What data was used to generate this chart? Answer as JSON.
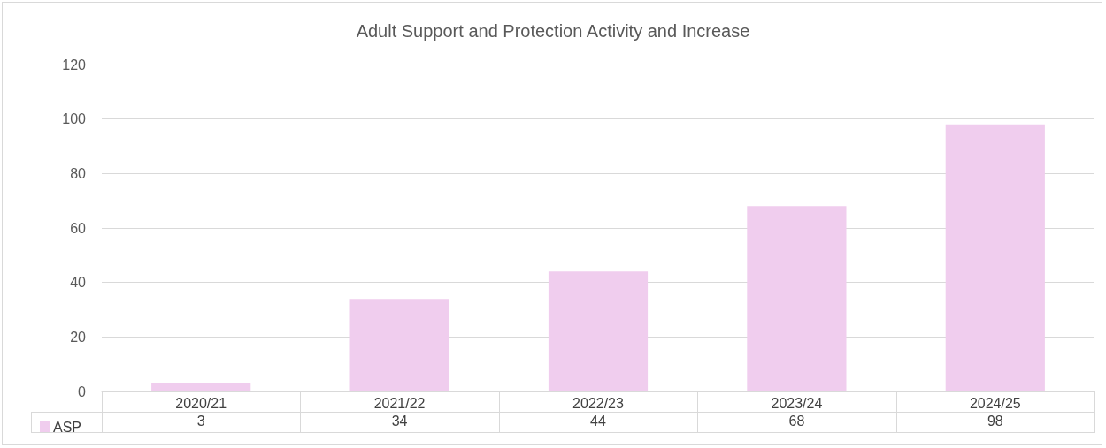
{
  "chart_data": {
    "type": "bar",
    "title": "Adult Support and Protection Activity and Increase",
    "categories": [
      "2020/21",
      "2021/22",
      "2022/23",
      "2023/24",
      "2024/25"
    ],
    "series": [
      {
        "name": "ASP",
        "color": "#f0cdee",
        "values": [
          3,
          34,
          44,
          68,
          98
        ]
      }
    ],
    "ylim": [
      0,
      120
    ],
    "yticks": [
      0,
      20,
      40,
      60,
      80,
      100,
      120
    ],
    "grid": "y",
    "legend": "bottom",
    "data_labels": true
  }
}
